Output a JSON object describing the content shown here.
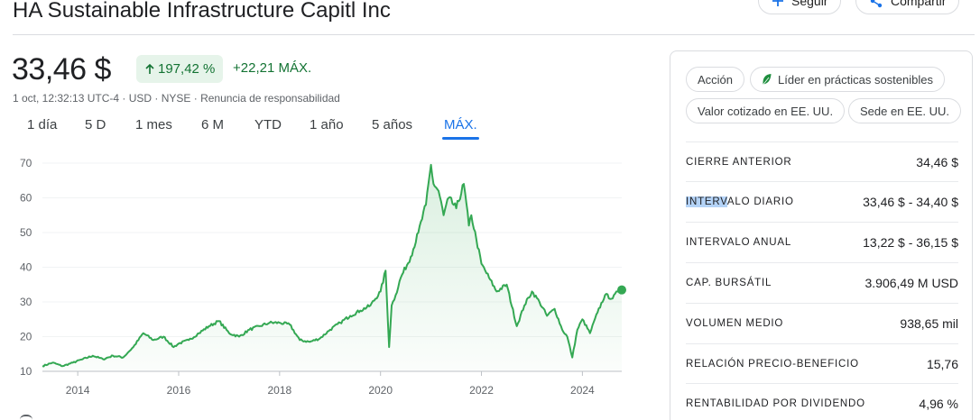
{
  "header": {
    "title": "HA Sustainable Infrastructure Capitl Inc",
    "follow_label": "Seguir",
    "share_label": "Compartir"
  },
  "quote": {
    "price": "33,46 $",
    "pct_change": "197,42 %",
    "abs_change": "+22,21 MÁX.",
    "meta": "1 oct, 12:32:13 UTC-4 · USD · NYSE · Renuncia de responsabilidad"
  },
  "ranges": [
    "1 día",
    "5 D",
    "1 mes",
    "6 M",
    "YTD",
    "1 año",
    "5 años",
    "MÁX."
  ],
  "active_range": "MÁX.",
  "chips": {
    "c1": "Acción",
    "c2": "Líder en prácticas sostenibles",
    "c3": "Valor cotizado en EE. UU.",
    "c4": "Sede en EE. UU."
  },
  "stats": [
    {
      "label": "CIERRE ANTERIOR",
      "value": "34,46 $"
    },
    {
      "label_hl": "INTERV",
      "label_rest": "ALO DIARIO",
      "value": "33,46 $ - 34,40 $"
    },
    {
      "label": "INTERVALO ANUAL",
      "value": "13,22 $ - 36,15 $"
    },
    {
      "label": "CAP. BURSÁTIL",
      "value": "3.906,49 M USD"
    },
    {
      "label": "VOLUMEN MEDIO",
      "value": "938,65 mil"
    },
    {
      "label": "RELACIÓN PRECIO-BENEFICIO",
      "value": "15,76"
    },
    {
      "label": "RENTABILIDAD POR DIVIDENDO",
      "value": "4,96 %"
    }
  ],
  "colors": {
    "line": "#34a853",
    "positive": "#137333",
    "positive_bg": "#e6f4ea",
    "accent": "#1a73e8"
  },
  "chart_data": {
    "type": "area",
    "x_ticks": [
      "2014",
      "2016",
      "2018",
      "2020",
      "2022",
      "2024"
    ],
    "y_ticks": [
      "10",
      "20",
      "30",
      "40",
      "50",
      "60",
      "70"
    ],
    "xlim": [
      2013.3,
      2024.78
    ],
    "ylim": [
      10,
      70
    ],
    "series": [
      {
        "x": [
          2013.3,
          2013.5,
          2013.7,
          2013.9,
          2014.1,
          2014.3,
          2014.5,
          2014.7,
          2014.9,
          2015.0,
          2015.1,
          2015.3,
          2015.5,
          2015.7,
          2015.9,
          2016.0,
          2016.2,
          2016.4,
          2016.6,
          2016.8,
          2017.0,
          2017.2,
          2017.4,
          2017.6,
          2017.8,
          2018.0,
          2018.2,
          2018.4,
          2018.6,
          2018.8,
          2019.0,
          2019.2,
          2019.4,
          2019.6,
          2019.8,
          2020.0,
          2020.1,
          2020.17,
          2020.22,
          2020.3,
          2020.4,
          2020.6,
          2020.75,
          2020.9,
          2021.0,
          2021.05,
          2021.15,
          2021.25,
          2021.35,
          2021.5,
          2021.65,
          2021.75,
          2021.8,
          2021.9,
          2022.0,
          2022.15,
          2022.3,
          2022.5,
          2022.7,
          2022.85,
          2023.0,
          2023.15,
          2023.3,
          2023.45,
          2023.6,
          2023.7,
          2023.8,
          2023.9,
          2024.0,
          2024.15,
          2024.3,
          2024.45,
          2024.6,
          2024.7,
          2024.78
        ],
        "y": [
          11.5,
          12.5,
          11.5,
          12.5,
          13.5,
          14.5,
          13.5,
          14.5,
          14.0,
          15.5,
          17.0,
          21.0,
          19.0,
          20.0,
          17.0,
          18.0,
          19.0,
          21.0,
          23.0,
          24.5,
          21.0,
          20.0,
          22.0,
          23.0,
          24.0,
          24.0,
          23.5,
          19.0,
          18.5,
          19.5,
          22.0,
          24.0,
          26.0,
          27.5,
          29.0,
          33.0,
          39.0,
          17.0,
          29.0,
          32.0,
          37.0,
          43.0,
          50.0,
          58.0,
          69.5,
          64.0,
          62.0,
          55.0,
          60.0,
          57.0,
          64.0,
          52.0,
          55.0,
          48.0,
          41.0,
          37.0,
          33.0,
          35.0,
          23.0,
          29.0,
          33.0,
          30.0,
          26.0,
          28.0,
          22.0,
          20.0,
          14.0,
          22.0,
          25.0,
          21.0,
          27.0,
          32.0,
          31.0,
          33.0,
          33.46
        ]
      }
    ]
  }
}
